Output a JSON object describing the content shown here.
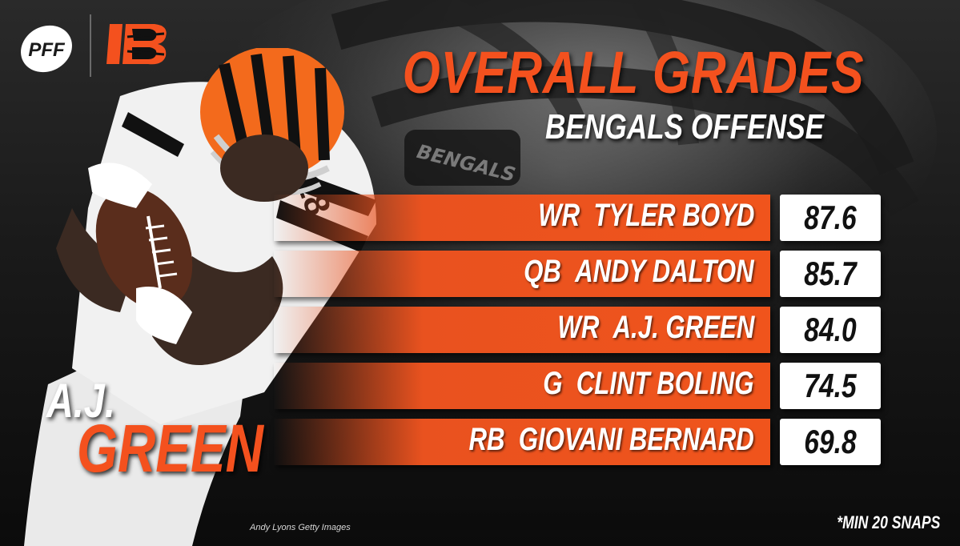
{
  "brand": {
    "pff_logo_text": "PFF",
    "team_logo_text": "B"
  },
  "title": "OVERALL GRADES",
  "subtitle": "BENGALS OFFENSE",
  "background": {
    "helmet_text": "BENGALS"
  },
  "player": {
    "first_name": "A.J.",
    "last_name": "GREEN",
    "jersey_number": "18"
  },
  "grades": [
    {
      "position": "WR",
      "name": "TYLER BOYD",
      "grade": "87.6"
    },
    {
      "position": "QB",
      "name": "ANDY DALTON",
      "grade": "85.7"
    },
    {
      "position": "WR",
      "name": "A.J. GREEN",
      "grade": "84.0"
    },
    {
      "position": "G",
      "name": "CLINT BOLING",
      "grade": "74.5"
    },
    {
      "position": "RB",
      "name": "GIOVANI BERNARD",
      "grade": "69.8"
    }
  ],
  "photo_credit": "Andy Lyons Getty Images",
  "footnote": "*MIN 20 SNAPS",
  "colors": {
    "accent": "#f4511e",
    "bar": "#ec521e",
    "text_light": "#ffffff",
    "grade_box": "#ffffff"
  }
}
